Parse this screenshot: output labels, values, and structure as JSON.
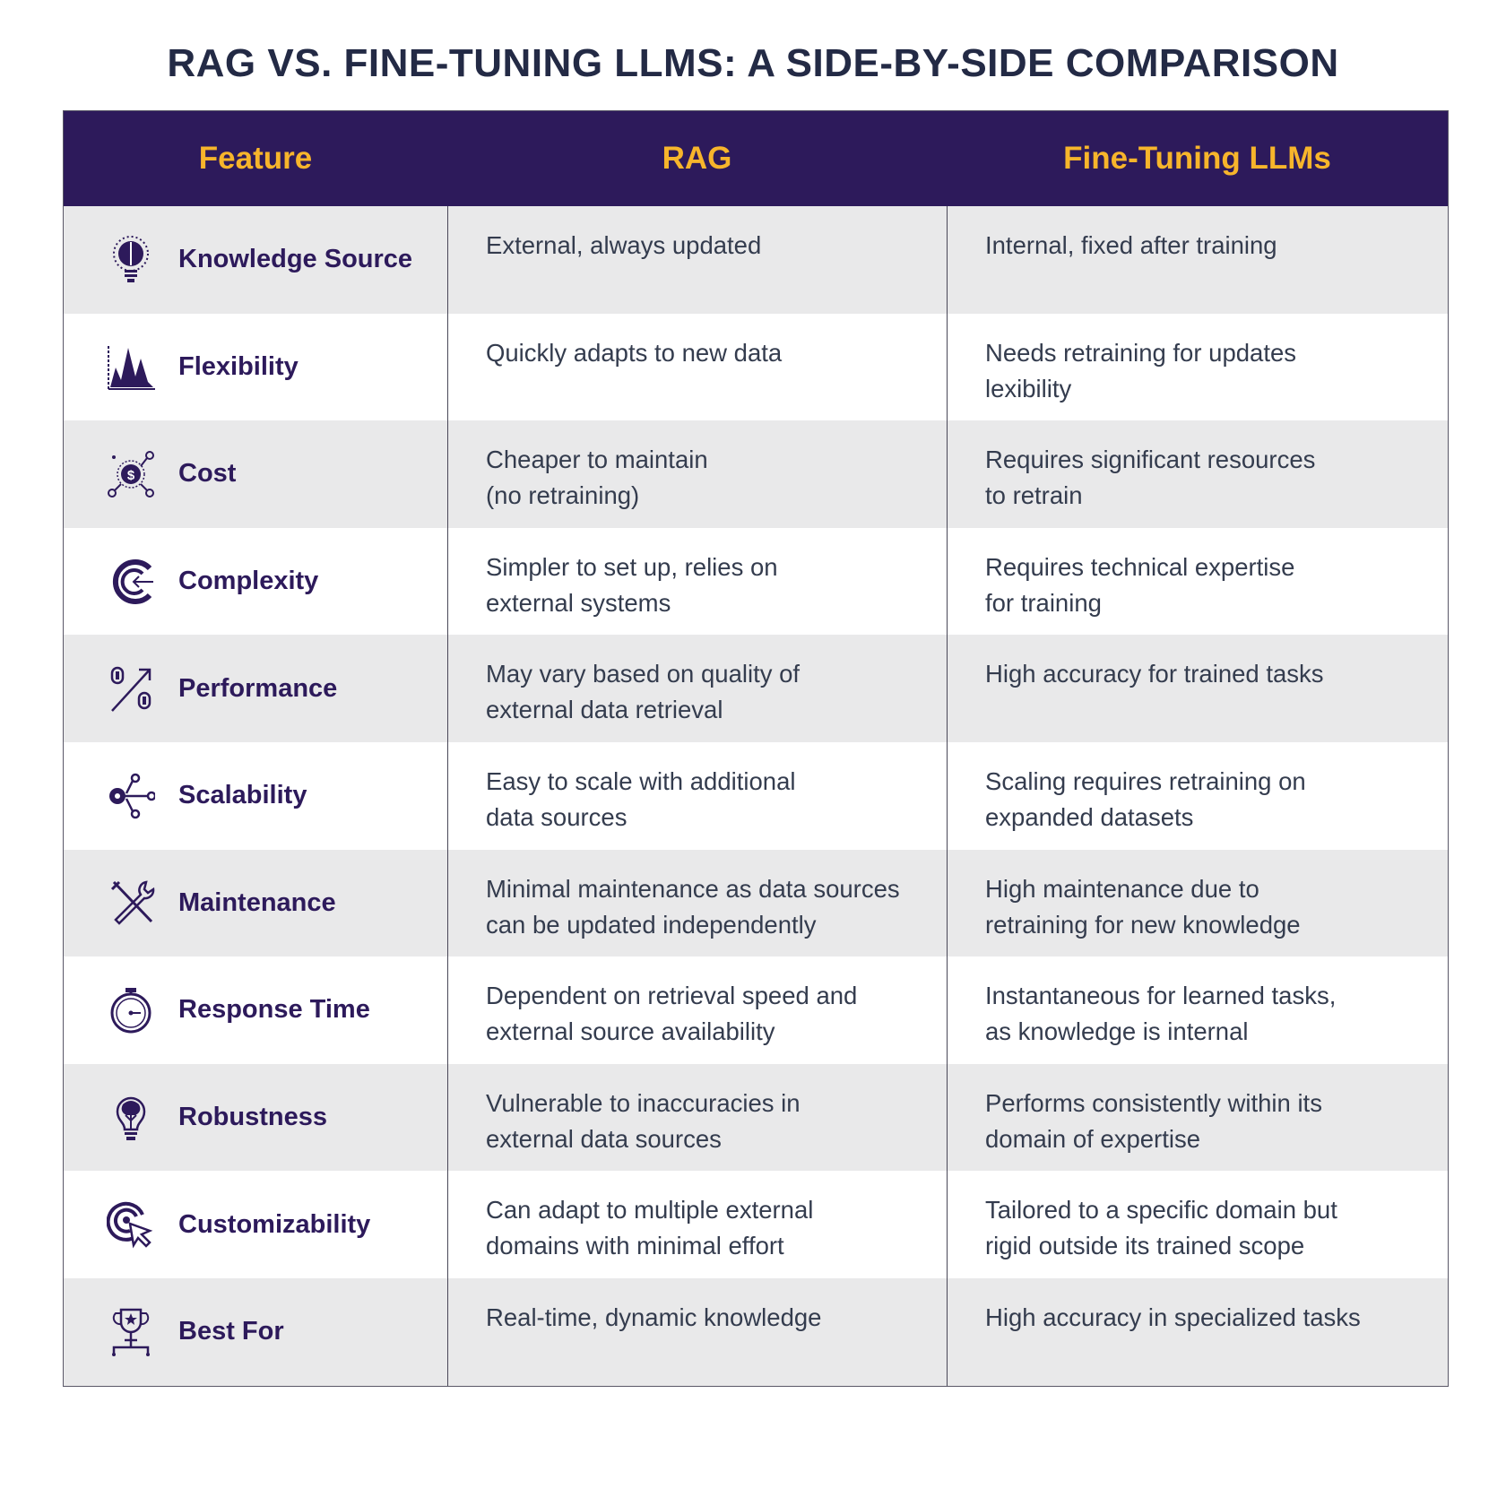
{
  "title": "RAG VS. FINE-TUNING LLMS: A SIDE-BY-SIDE COMPARISON",
  "colors": {
    "header_bg": "#2d1a5b",
    "header_text": "#f7b52b",
    "feature_text": "#2d1a5b",
    "body_text": "#343c4e",
    "row_alt": "#e9e9ea"
  },
  "headers": [
    "Feature",
    "RAG",
    "Fine-Tuning LLMs"
  ],
  "rows": [
    {
      "icon": "lightbulb-brain-icon",
      "feature": "Knowledge Source",
      "rag": "External, always updated",
      "ft": "Internal, fixed after training"
    },
    {
      "icon": "chart-peaks-icon",
      "feature": "Flexibility",
      "rag": "Quickly adapts to new data",
      "ft": "Needs retraining for updates\nlexibility"
    },
    {
      "icon": "dollar-network-icon",
      "feature": "Cost",
      "rag": "Cheaper to maintain\n(no retraining)",
      "ft": "Requires significant resources\nto retrain"
    },
    {
      "icon": "gauge-arrow-icon",
      "feature": "Complexity",
      "rag": "Simpler to set up, relies on\nexternal systems",
      "ft": "Requires technical expertise\nfor training"
    },
    {
      "icon": "percent-arrow-icon",
      "feature": "Performance",
      "rag": "May vary based on quality of\nexternal data retrieval",
      "ft": "High accuracy for trained tasks"
    },
    {
      "icon": "branch-nodes-icon",
      "feature": "Scalability",
      "rag": "Easy to scale with additional\ndata sources",
      "ft": "Scaling requires retraining on\nexpanded datasets"
    },
    {
      "icon": "wrench-screwdriver-icon",
      "feature": "Maintenance",
      "rag": "Minimal maintenance as data sources\ncan be updated independently",
      "ft": "High maintenance due to\nretraining for new knowledge"
    },
    {
      "icon": "stopwatch-icon",
      "feature": "Response Time",
      "rag": "Dependent on retrieval speed and\nexternal source availability",
      "ft": "Instantaneous for learned tasks,\nas knowledge is internal"
    },
    {
      "icon": "brain-bulb-icon",
      "feature": "Robustness",
      "rag": "Vulnerable to inaccuracies in\nexternal data sources",
      "ft": "Performs consistently within its\ndomain of expertise"
    },
    {
      "icon": "target-cursor-icon",
      "feature": "Customizability",
      "rag": "Can adapt to multiple external\ndomains with minimal effort",
      "ft": "Tailored to a specific domain but\nrigid outside its trained scope"
    },
    {
      "icon": "trophy-icon",
      "feature": "Best For",
      "rag": "Real-time, dynamic knowledge",
      "ft": "High accuracy in specialized tasks"
    }
  ]
}
